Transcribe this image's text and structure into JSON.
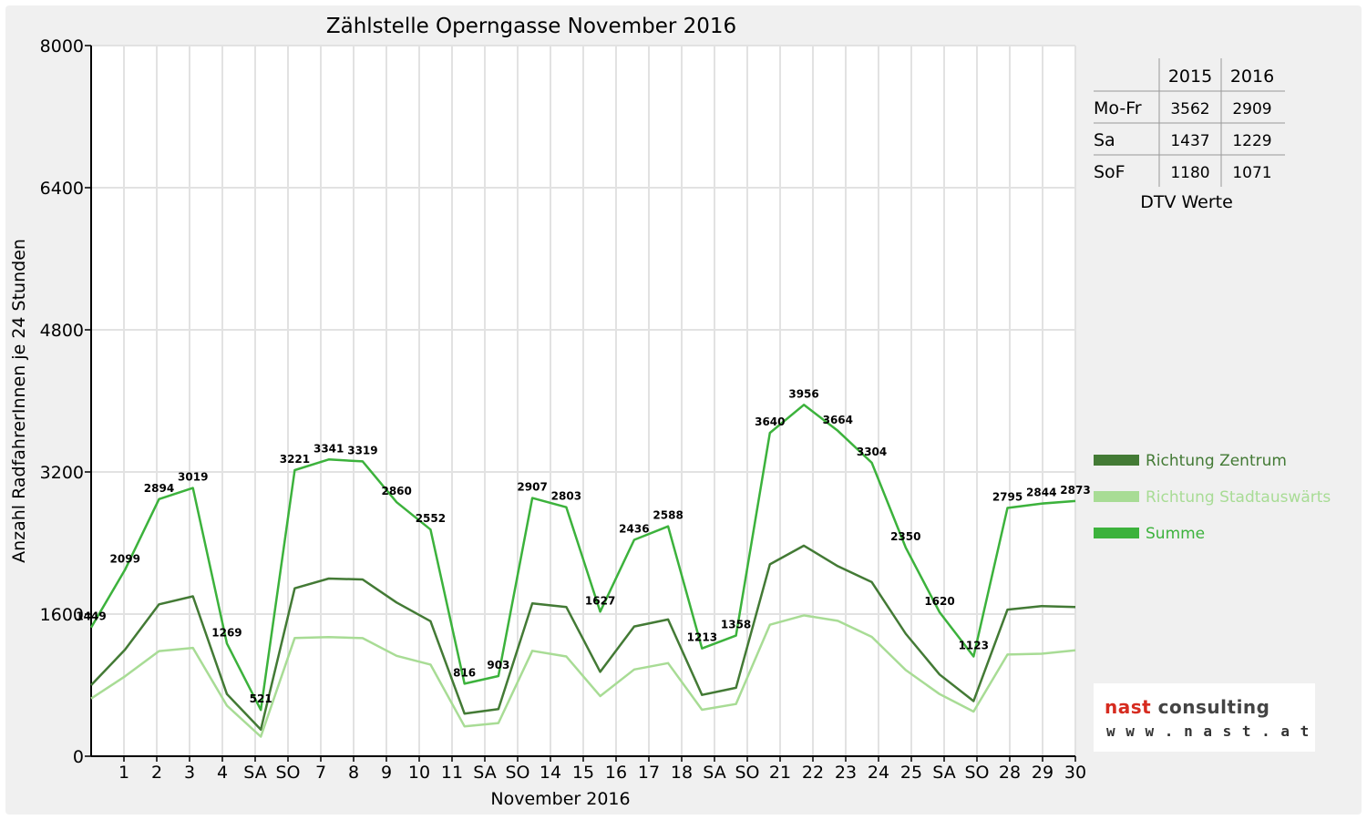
{
  "chart_data": {
    "type": "line",
    "title": "Zählstelle Operngasse November 2016",
    "xlabel": "November 2016",
    "ylabel": "Anzahl RadfahrerInnen je 24 Stunden",
    "ylim": [
      0,
      8000
    ],
    "yticks": [
      "0",
      "1600",
      "3200",
      "4800",
      "6400",
      "8000"
    ],
    "grid": true,
    "legend_position": "right",
    "categories": [
      "1",
      "2",
      "3",
      "4",
      "SA",
      "SO",
      "7",
      "8",
      "9",
      "10",
      "11",
      "SA",
      "SO",
      "14",
      "15",
      "16",
      "17",
      "18",
      "SA",
      "SO",
      "21",
      "22",
      "23",
      "24",
      "25",
      "SA",
      "SO",
      "28",
      "29",
      "30"
    ],
    "category_colors": [
      "#e00000",
      "#000000",
      "#000000",
      "#000000",
      "#000000",
      "#e00000",
      "#000000",
      "#000000",
      "#000000",
      "#000000",
      "#000000",
      "#000000",
      "#e00000",
      "#000000",
      "#000000",
      "#000000",
      "#000000",
      "#000000",
      "#000000",
      "#e00000",
      "#000000",
      "#000000",
      "#000000",
      "#000000",
      "#000000",
      "#000000",
      "#e00000",
      "#000000",
      "#000000",
      "#000000"
    ],
    "series": [
      {
        "name": "Richtung Zentrum",
        "color": "#437a35",
        "values": [
          800,
          1200,
          1710,
          1800,
          700,
          300,
          1890,
          2000,
          1990,
          1730,
          1520,
          480,
          530,
          1720,
          1680,
          950,
          1460,
          1540,
          690,
          770,
          2160,
          2370,
          2140,
          1960,
          1380,
          920,
          620,
          1650,
          1690,
          1680
        ]
      },
      {
        "name": "Richtung Stadtauswärts",
        "color": "#a8dc95",
        "values": [
          649,
          899,
          1184,
          1219,
          569,
          221,
          1331,
          1341,
          1329,
          1130,
          1032,
          336,
          373,
          1187,
          1123,
          677,
          976,
          1048,
          523,
          588,
          1480,
          1586,
          1524,
          1344,
          970,
          700,
          503,
          1145,
          1154,
          1193
        ]
      },
      {
        "name": "Summe",
        "color": "#3cb23c",
        "values": [
          1449,
          2099,
          2894,
          3019,
          1269,
          521,
          3221,
          3341,
          3319,
          2860,
          2552,
          816,
          903,
          2907,
          2803,
          1627,
          2436,
          2588,
          1213,
          1358,
          3640,
          3956,
          3664,
          3304,
          2350,
          1620,
          1123,
          2795,
          2844,
          2873
        ]
      }
    ],
    "data_labels": [
      "1449",
      "2099",
      "2894",
      "3019",
      "1269",
      "521",
      "3221",
      "3341",
      "3319",
      "2860",
      "2552",
      "816",
      "903",
      "2907",
      "2803",
      "1627",
      "2436",
      "2588",
      "1213",
      "1358",
      "3640",
      "3956",
      "3664",
      "3304",
      "2350",
      "1620",
      "1123",
      "2795",
      "2844",
      "2873"
    ],
    "dtv_table": {
      "headers": [
        "2015",
        "2016"
      ],
      "rows": [
        {
          "label": "Mo-Fr",
          "values": [
            "3562",
            "2909"
          ]
        },
        {
          "label": "Sa",
          "values": [
            "1437",
            "1229"
          ]
        },
        {
          "label": "SoF",
          "values": [
            "1180",
            "1071"
          ]
        }
      ],
      "caption": "DTV Werte"
    }
  },
  "logo": {
    "name": "nast consulting",
    "url": "w w w . n a s t . a t"
  }
}
